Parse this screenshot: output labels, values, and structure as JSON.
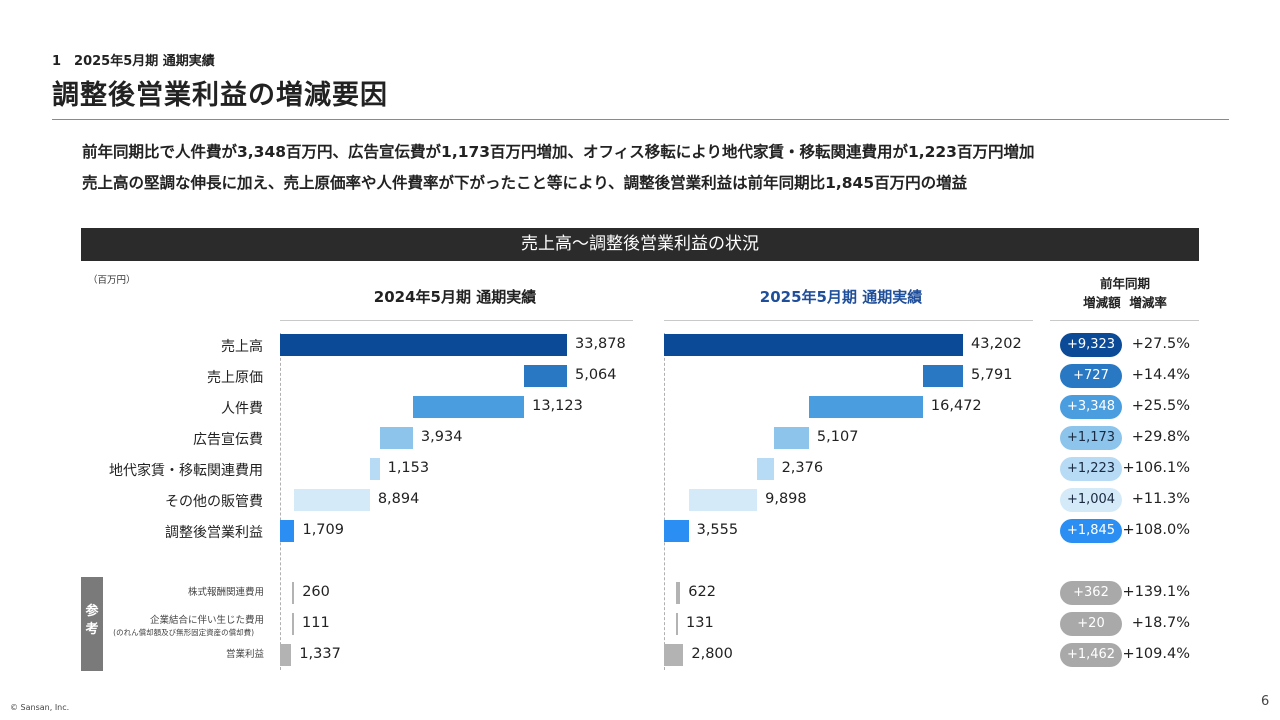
{
  "header": {
    "section": "1　2025年5月期 通期実績",
    "title": "調整後営業利益の増減要因"
  },
  "summary": {
    "line1": "前年同期比で人件費が3,348百万円、広告宣伝費が1,173百万円増加、オフィス移転により地代家賃・移転関連費用が1,223百万円増加",
    "line2": "売上高の堅調な伸長に加え、売上原価率や人件費率が下がったこと等により、調整後営業利益は前年同期比1,845百万円の増益"
  },
  "band_title": "売上高～調整後営業利益の状況",
  "unit": "（百万円）",
  "columns": {
    "y2024": "2024年5月期 通期実績",
    "y2025": "2025年5月期 通期実績",
    "yoy_line1": "前年同期",
    "yoy_line2": "増減額  増減率"
  },
  "reference_label": "参考",
  "colors": {
    "revenue": "#0b4a96",
    "cost": "#2878c4",
    "personnel": "#4a9ee0",
    "ad": "#8cc4ec",
    "rent": "#b7dbf4",
    "other": "#d4eaf9",
    "adj_op": "#2a8ef2",
    "gray": "#b3b3b3"
  },
  "chart_data": {
    "type": "bar",
    "subtype": "waterfall",
    "unit": "百万円",
    "rows": [
      {
        "label": "売上高",
        "v2024": 33878,
        "v2025": 43202,
        "yoy": "+9,323",
        "rate": "+27.5%",
        "color": "revenue",
        "pill": "#0b4a96",
        "pill_text": "#ffffff"
      },
      {
        "label": "売上原価",
        "v2024": 5064,
        "v2025": 5791,
        "yoy": "+727",
        "rate": "+14.4%",
        "color": "cost",
        "pill": "#2878c4",
        "pill_text": "#ffffff"
      },
      {
        "label": "人件費",
        "v2024": 13123,
        "v2025": 16472,
        "yoy": "+3,348",
        "rate": "+25.5%",
        "color": "personnel",
        "pill": "#4a9ee0",
        "pill_text": "#ffffff"
      },
      {
        "label": "広告宣伝費",
        "v2024": 3934,
        "v2025": 5107,
        "yoy": "+1,173",
        "rate": "+29.8%",
        "color": "ad",
        "pill": "#8cc4ec",
        "pill_text": "#1a2a40"
      },
      {
        "label": "地代家賃・移転関連費用",
        "v2024": 1153,
        "v2025": 2376,
        "yoy": "+1,223",
        "rate": "+106.1%",
        "color": "rent",
        "pill": "#b7dbf4",
        "pill_text": "#1a2a40"
      },
      {
        "label": "その他の販管費",
        "v2024": 8894,
        "v2025": 9898,
        "yoy": "+1,004",
        "rate": "+11.3%",
        "color": "other",
        "pill": "#d4eaf9",
        "pill_text": "#1a2a40"
      },
      {
        "label": "調整後営業利益",
        "v2024": 1709,
        "v2025": 3555,
        "yoy": "+1,845",
        "rate": "+108.0%",
        "color": "adj_op",
        "pill": "#2a8ef2",
        "pill_text": "#ffffff"
      }
    ],
    "reference_rows": [
      {
        "label": "株式報酬関連費用",
        "sublabel": "",
        "v2024": 260,
        "v2025": 622,
        "yoy": "+362",
        "rate": "+139.1%"
      },
      {
        "label": "企業結合に伴い生じた費用",
        "sublabel": "(のれん償却額及び無形固定資産の償却費)",
        "v2024": 111,
        "v2025": 131,
        "yoy": "+20",
        "rate": "+18.7%"
      },
      {
        "label": "営業利益",
        "sublabel": "",
        "v2024": 1337,
        "v2025": 2800,
        "yoy": "+1,462",
        "rate": "+109.4%"
      }
    ],
    "values_text": {
      "v2024": [
        "33,878",
        "5,064",
        "13,123",
        "3,934",
        "1,153",
        "8,894",
        "1,709"
      ],
      "v2025": [
        "43,202",
        "5,791",
        "16,472",
        "5,107",
        "2,376",
        "9,898",
        "3,555"
      ],
      "ref2024": [
        "260",
        "111",
        "1,337"
      ],
      "ref2025": [
        "622",
        "131",
        "2,800"
      ]
    }
  },
  "footer": {
    "copyright": "© Sansan, Inc.",
    "page": "6"
  }
}
